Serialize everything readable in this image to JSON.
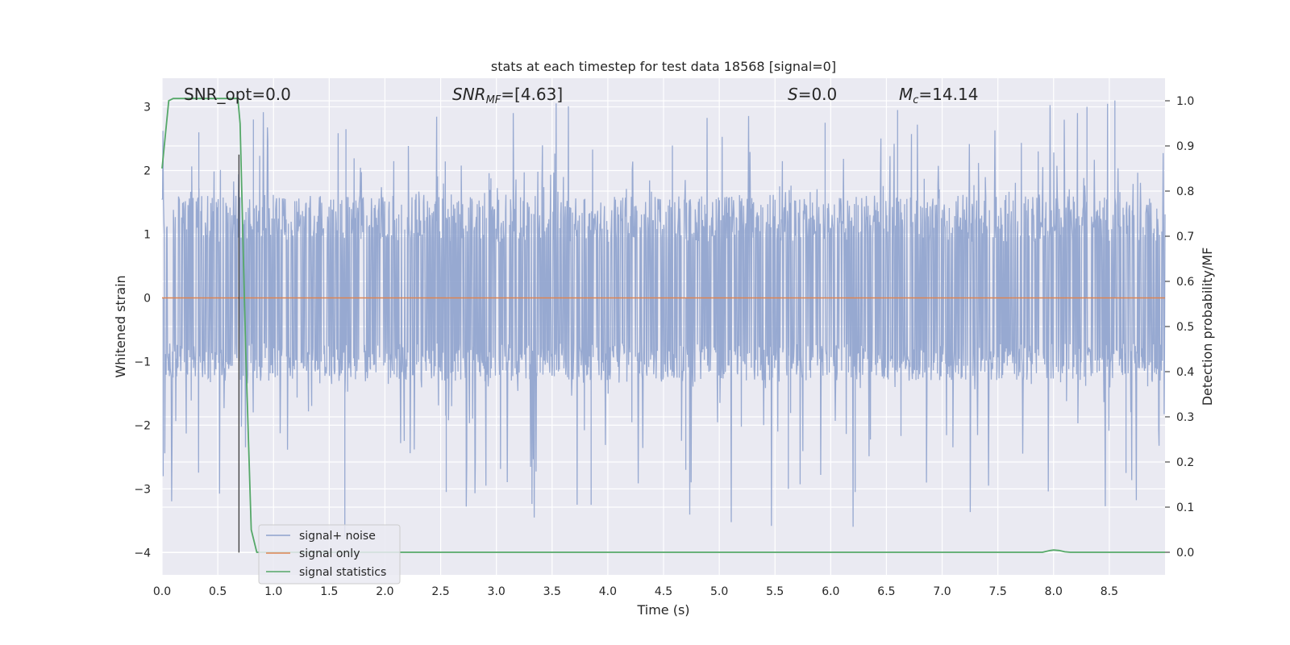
{
  "chart_data": {
    "type": "line",
    "title": "stats at each timestep for test data 18568 [signal=0]",
    "xlabel": "Time (s)",
    "ylabel": "Whitened strain",
    "ylabel_right": "Detection probability/MF",
    "xlim": [
      0,
      9
    ],
    "ylim": [
      -4.35,
      3.45
    ],
    "ylim_right": [
      -0.05,
      1.05
    ],
    "grid": true,
    "legend_position": "lower-left",
    "xticks": [
      "0.0",
      "0.5",
      "1.0",
      "1.5",
      "2.0",
      "2.5",
      "3.0",
      "3.5",
      "4.0",
      "4.5",
      "5.0",
      "5.5",
      "6.0",
      "6.5",
      "7.0",
      "7.5",
      "8.0",
      "8.5"
    ],
    "yticks_left": [
      "3",
      "2",
      "1",
      "0",
      "−1",
      "−2",
      "−3",
      "−4"
    ],
    "yticks_right": [
      "1.0",
      "0.9",
      "0.8",
      "0.7",
      "0.6",
      "0.5",
      "0.4",
      "0.3",
      "0.2",
      "0.1",
      "0.0"
    ],
    "annotations": {
      "snr_opt": "SNR_opt=0.0",
      "snr_mf_main": "SNR",
      "snr_mf_sub": "MF",
      "snr_mf_value": "=[4.63]",
      "s_symbol": "S",
      "s_value": "=0.0",
      "mc_main": "M",
      "mc_sub": "c",
      "mc_value": "=14.14"
    },
    "marker_line": {
      "x": 0.69,
      "y_from": -4.0,
      "y_to": 2.25,
      "label": ""
    },
    "series": [
      {
        "name": "signal+ noise",
        "color": "#8ea2cd",
        "axis": "left",
        "style": "noise",
        "amplitude_envelope": {
          "typical_max": 1.6,
          "typical_min": -1.3,
          "peak_max": 3.1,
          "peak_min": -3.75
        },
        "notable_peaks": [
          {
            "x": 0.01,
            "y": -2.8
          },
          {
            "x": 0.33,
            "y": 2.6
          },
          {
            "x": 0.82,
            "y": 2.8
          },
          {
            "x": 1.64,
            "y": -3.75
          },
          {
            "x": 1.65,
            "y": 2.65
          },
          {
            "x": 2.55,
            "y": -3.05
          },
          {
            "x": 3.85,
            "y": -3.25
          },
          {
            "x": 4.7,
            "y": -2.7
          },
          {
            "x": 5.62,
            "y": -3.0
          },
          {
            "x": 5.95,
            "y": 2.75
          },
          {
            "x": 6.22,
            "y": -3.05
          },
          {
            "x": 6.6,
            "y": 2.95
          },
          {
            "x": 8.3,
            "y": 3.0
          },
          {
            "x": 8.55,
            "y": 3.1
          },
          {
            "x": 8.65,
            "y": -2.75
          }
        ]
      },
      {
        "name": "signal only",
        "color": "#dd8452",
        "axis": "left",
        "x": [
          0,
          9
        ],
        "y": [
          0,
          0
        ]
      },
      {
        "name": "signal statistics",
        "color": "#55a868",
        "axis": "right",
        "x": [
          0.0,
          0.06,
          0.1,
          0.15,
          0.2,
          0.3,
          0.4,
          0.5,
          0.6,
          0.68,
          0.7,
          0.75,
          0.8,
          0.85,
          1.0,
          2.0,
          3.0,
          4.0,
          5.0,
          6.0,
          7.0,
          7.9,
          7.97,
          8.0,
          8.05,
          8.1,
          8.15,
          8.3,
          9.0
        ],
        "y": [
          0.85,
          1.0,
          1.005,
          1.005,
          1.005,
          1.005,
          1.005,
          1.005,
          1.005,
          1.005,
          0.95,
          0.45,
          0.05,
          0.0,
          0.0,
          0.0,
          0.0,
          0.0,
          0.0,
          0.0,
          0.0,
          0.0,
          0.004,
          0.005,
          0.004,
          0.001,
          0.0,
          0.0,
          0.0
        ]
      }
    ]
  }
}
